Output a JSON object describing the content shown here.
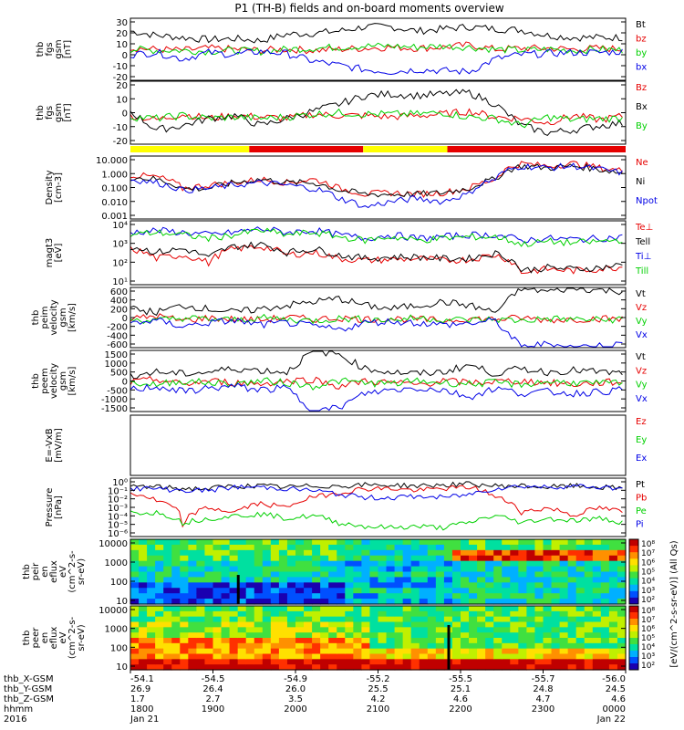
{
  "title": "P1 (TH-B) fields and on-board moments overview",
  "colors": {
    "black": "#000000",
    "red": "#e60000",
    "green": "#00d000",
    "blue": "#0000e6",
    "bar_yellow": "#ffff00",
    "bar_red": "#e60000",
    "frame": "#000000"
  },
  "bottom_axis": {
    "row_labels": [
      "thb_X-GSM",
      "thb_Y-GSM",
      "thb_Z-GSM",
      "hhmm",
      "2016"
    ],
    "columns": [
      [
        "-54.1",
        "26.9",
        "1.7",
        "1800",
        "Jan 21"
      ],
      [
        "-54.5",
        "26.4",
        "2.7",
        "1900",
        ""
      ],
      [
        "-54.9",
        "26.0",
        "3.5",
        "2000",
        ""
      ],
      [
        "-55.2",
        "25.5",
        "4.2",
        "2100",
        ""
      ],
      [
        "-55.5",
        "25.1",
        "4.6",
        "2200",
        ""
      ],
      [
        "-55.7",
        "24.8",
        "4.7",
        "2300",
        ""
      ],
      [
        "-56.0",
        "24.5",
        "4.6",
        "0000",
        "Jan 22"
      ]
    ]
  },
  "colorbar": {
    "label": "[eV/(cm^2-s-sr-eV)] (All Qs)",
    "ticks_top": [
      "10⁸",
      "10⁷",
      "10⁶",
      "10⁵",
      "10⁴",
      "10³",
      "10²"
    ],
    "ticks_bottom": [
      "10⁸",
      "10⁷",
      "10⁶",
      "10⁵",
      "10⁴",
      "10³",
      "10²"
    ]
  },
  "chart_data": [
    {
      "type": "line",
      "panel": "fgs",
      "ylabel": [
        "thb",
        "fgs",
        "gsm",
        "[nT]"
      ],
      "yticks": [
        "30",
        "20",
        "10",
        "0",
        "-10",
        "-20"
      ],
      "series": [
        {
          "name": "Bt",
          "color": "black",
          "values": [
            18,
            14,
            12,
            10,
            11,
            9,
            15,
            16,
            18,
            22,
            22,
            18,
            20,
            22,
            20,
            19,
            14,
            12,
            12,
            12
          ]
        },
        {
          "name": "bz",
          "color": "red",
          "values": [
            2,
            1,
            0,
            2,
            1,
            0,
            1,
            0,
            1,
            2,
            3,
            2,
            3,
            5,
            1,
            2,
            2,
            1,
            2,
            1
          ]
        },
        {
          "name": "by",
          "color": "green",
          "values": [
            1,
            0,
            0,
            -1,
            0,
            -1,
            1,
            2,
            3,
            4,
            4,
            3,
            4,
            3,
            1,
            0,
            1,
            0,
            1,
            0
          ]
        },
        {
          "name": "bx",
          "color": "blue",
          "values": [
            -4,
            -2,
            -8,
            -2,
            -4,
            -1,
            -3,
            -10,
            -14,
            -18,
            -20,
            -18,
            -19,
            -20,
            -8,
            -4,
            -3,
            -2,
            -2,
            -1
          ]
        }
      ]
    },
    {
      "type": "line",
      "panel": "fgs-gsm",
      "ylabel": [
        "thb",
        "fgs",
        "gsm",
        "[nT]"
      ],
      "yticks": [
        "20",
        "10",
        "0",
        "-10",
        "-20"
      ],
      "series": [
        {
          "name": "Bz",
          "color": "red",
          "values": [
            2,
            -1,
            3,
            0,
            2,
            1,
            0,
            3,
            2,
            2,
            1,
            2,
            3,
            5,
            1,
            0,
            -3,
            2,
            -1,
            2
          ]
        },
        {
          "name": "Bx",
          "color": "black",
          "values": [
            5,
            -8,
            -5,
            0,
            2,
            -5,
            0,
            5,
            10,
            16,
            17,
            16,
            17,
            18,
            10,
            -5,
            -10,
            -8,
            -5,
            -3
          ]
        },
        {
          "name": "By",
          "color": "green",
          "values": [
            1,
            0,
            2,
            0,
            1,
            0,
            1,
            3,
            4,
            3,
            3,
            3,
            4,
            1,
            0,
            -5,
            1,
            -1,
            0,
            0
          ]
        }
      ]
    },
    {
      "type": "line",
      "panel": "density",
      "yscale": "log",
      "ylabel": [
        "Density",
        "[cm-3]"
      ],
      "yticks": [
        "10.000",
        "1.000",
        "0.100",
        "0.010",
        "0.001"
      ],
      "series": [
        {
          "name": "Ne",
          "color": "red",
          "values": [
            0.5,
            0.4,
            0.1,
            0.15,
            0.2,
            0.3,
            0.2,
            0.3,
            0.1,
            0.05,
            0.06,
            0.05,
            0.06,
            0.1,
            0.3,
            2.0,
            1.5,
            2.0,
            1.2,
            0.8
          ]
        },
        {
          "name": "Ni",
          "color": "black",
          "values": [
            0.4,
            0.3,
            0.1,
            0.1,
            0.2,
            0.3,
            0.2,
            0.2,
            0.08,
            0.05,
            0.05,
            0.05,
            0.06,
            0.1,
            0.3,
            1.5,
            1.2,
            1.5,
            1.0,
            0.6
          ]
        },
        {
          "name": "Npot",
          "color": "blue",
          "values": [
            0.3,
            0.2,
            0.08,
            0.1,
            0.15,
            0.2,
            0.15,
            0.1,
            0.03,
            0.01,
            0.02,
            0.03,
            0.02,
            0.05,
            0.3,
            1.5,
            1.2,
            1.5,
            1.0,
            0.6
          ]
        }
      ],
      "legend_only": []
    },
    {
      "type": "line",
      "panel": "temperature",
      "yscale": "log",
      "ylabel": [
        "magt3",
        "[eV]"
      ],
      "yticks": [
        "10⁴",
        "10³",
        "10²",
        "10¹"
      ],
      "series": [
        {
          "name": "Te⊥",
          "color": "red",
          "values": [
            300,
            100,
            150,
            60,
            300,
            400,
            150,
            200,
            100,
            80,
            90,
            100,
            80,
            90,
            150,
            20,
            30,
            25,
            30,
            40
          ]
        },
        {
          "name": "Tell",
          "color": "black",
          "values": [
            400,
            200,
            300,
            100,
            400,
            500,
            200,
            300,
            150,
            100,
            120,
            120,
            100,
            100,
            180,
            25,
            35,
            30,
            35,
            50
          ]
        },
        {
          "name": "Ti⊥",
          "color": "blue",
          "values": [
            2000,
            2500,
            2000,
            1500,
            2000,
            3000,
            2000,
            2500,
            1500,
            1000,
            1500,
            1000,
            1200,
            1500,
            1500,
            800,
            1000,
            900,
            1000,
            1200
          ]
        },
        {
          "name": "Till",
          "color": "green",
          "values": [
            1500,
            2000,
            1500,
            1000,
            1500,
            2500,
            1500,
            2000,
            1200,
            800,
            1200,
            800,
            1000,
            1200,
            1200,
            500,
            700,
            600,
            700,
            900
          ]
        }
      ]
    },
    {
      "type": "line",
      "panel": "peim-velocity",
      "ylabel": [
        "thb",
        "peim",
        "velocity",
        "gsm",
        "[km/s]"
      ],
      "yticks": [
        "600",
        "400",
        "200",
        "0",
        "-200",
        "-400",
        "-600"
      ],
      "series": [
        {
          "name": "Vt",
          "color": "black",
          "values": [
            150,
            100,
            200,
            150,
            100,
            150,
            200,
            250,
            300,
            200,
            150,
            200,
            250,
            200,
            100,
            450,
            400,
            450,
            420,
            400
          ]
        },
        {
          "name": "Vz",
          "color": "red",
          "values": [
            0,
            50,
            -20,
            20,
            0,
            -10,
            30,
            0,
            20,
            0,
            10,
            0,
            -20,
            10,
            0,
            20,
            -10,
            0,
            10,
            0
          ]
        },
        {
          "name": "Vy",
          "color": "green",
          "values": [
            0,
            -20,
            20,
            0,
            -10,
            20,
            0,
            -20,
            10,
            0,
            -10,
            20,
            0,
            -10,
            0,
            -20,
            10,
            0,
            -10,
            0
          ]
        },
        {
          "name": "Vx",
          "color": "blue",
          "values": [
            -50,
            -20,
            -100,
            -50,
            -20,
            -80,
            -50,
            -100,
            -150,
            -50,
            -30,
            -50,
            -80,
            -60,
            -20,
            -400,
            -350,
            -400,
            -380,
            -350
          ]
        }
      ]
    },
    {
      "type": "line",
      "panel": "peem-velocity",
      "ylabel": [
        "thb",
        "peem",
        "velocity",
        "gsm",
        "[km/s]"
      ],
      "yticks": [
        "1500",
        "1000",
        "500",
        "0",
        "-500",
        "-1000",
        "-1500"
      ],
      "series": [
        {
          "name": "Vt",
          "color": "black",
          "values": [
            200,
            300,
            250,
            300,
            400,
            350,
            300,
            900,
            800,
            400,
            300,
            250,
            300,
            500,
            250,
            400,
            300,
            350,
            300,
            250
          ]
        },
        {
          "name": "Vz",
          "color": "red",
          "values": [
            0,
            100,
            -50,
            50,
            0,
            -30,
            50,
            100,
            -100,
            50,
            0,
            -50,
            50,
            0,
            30,
            50,
            0,
            -50,
            0,
            30
          ]
        },
        {
          "name": "Vy",
          "color": "green",
          "values": [
            0,
            -50,
            50,
            0,
            -30,
            50,
            0,
            -100,
            50,
            0,
            -30,
            50,
            0,
            -30,
            0,
            -50,
            30,
            0,
            -30,
            0
          ]
        },
        {
          "name": "Vx",
          "color": "blue",
          "values": [
            -200,
            -100,
            -250,
            -150,
            -100,
            -200,
            -150,
            -800,
            -700,
            -300,
            -200,
            -150,
            -200,
            -400,
            -150,
            -300,
            -250,
            -300,
            -250,
            -200
          ]
        }
      ]
    },
    {
      "type": "line",
      "panel": "efield",
      "ylabel": [
        "E=-VxB",
        "[mV/m]"
      ],
      "yticks": [],
      "series": [
        {
          "name": "Ez",
          "color": "red",
          "values": []
        },
        {
          "name": "Ey",
          "color": "green",
          "values": []
        },
        {
          "name": "Ex",
          "color": "blue",
          "values": []
        }
      ]
    },
    {
      "type": "line",
      "panel": "pressure",
      "yscale": "log",
      "ylabel": [
        "Pressure",
        "[nPa]"
      ],
      "yticks": [
        "10⁰",
        "10⁻¹",
        "10⁻²",
        "10⁻³",
        "10⁻⁴",
        "10⁻⁵",
        "10⁻⁶"
      ],
      "series": [
        {
          "name": "Pt",
          "color": "black",
          "values": [
            0.3,
            0.25,
            0.2,
            0.2,
            0.3,
            0.3,
            0.25,
            0.3,
            0.3,
            0.35,
            0.35,
            0.3,
            0.35,
            0.4,
            0.3,
            0.3,
            0.25,
            0.3,
            0.25,
            0.2
          ]
        },
        {
          "name": "Pb",
          "color": "red",
          "values": [
            0.1,
            0.03,
            0.0005,
            0.01,
            0.005,
            0.02,
            0.01,
            0.05,
            0.1,
            0.2,
            0.2,
            0.15,
            0.2,
            0.25,
            0.05,
            0.005,
            0.01,
            0.003,
            0.01,
            0.005
          ]
        },
        {
          "name": "Pe",
          "color": "green",
          "values": [
            0.005,
            0.005,
            0.001,
            0.002,
            0.003,
            0.004,
            0.002,
            0.003,
            0.001,
            0.0006,
            0.0005,
            0.0006,
            0.0005,
            0.001,
            0.003,
            0.001,
            0.002,
            0.0015,
            0.002,
            0.001
          ]
        },
        {
          "name": "Pi",
          "color": "blue",
          "values": [
            0.2,
            0.2,
            0.15,
            0.15,
            0.25,
            0.25,
            0.2,
            0.15,
            0.08,
            0.05,
            0.05,
            0.06,
            0.05,
            0.08,
            0.2,
            0.3,
            0.25,
            0.3,
            0.25,
            0.2
          ]
        }
      ]
    },
    {
      "type": "heatmap",
      "panel": "peir",
      "ylabel": [
        "thb",
        "peir",
        "en",
        "eflux",
        "eV",
        "(cm^2-s-",
        "sr-eV)"
      ],
      "yticks": [
        "10000",
        "1000",
        "100",
        "10"
      ]
    },
    {
      "type": "heatmap",
      "panel": "peer",
      "ylabel": [
        "thb",
        "peer",
        "en",
        "eflux",
        "eV",
        "(cm^2-s-",
        "sr-eV)"
      ],
      "yticks": [
        "10000",
        "1000",
        "100",
        "10"
      ]
    }
  ],
  "mode_bar": {
    "segments": [
      {
        "color": "bar_yellow",
        "from": 0.0,
        "to": 0.24
      },
      {
        "color": "bar_red",
        "from": 0.24,
        "to": 0.47
      },
      {
        "color": "bar_yellow",
        "from": 0.47,
        "to": 0.64
      },
      {
        "color": "bar_red",
        "from": 0.64,
        "to": 1.0
      }
    ]
  }
}
